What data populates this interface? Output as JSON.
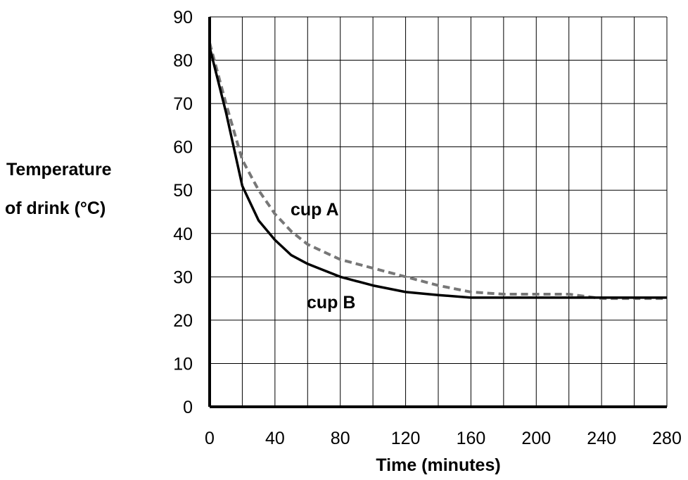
{
  "chart_data": {
    "type": "line",
    "xlabel": "Time (minutes)",
    "ylabel_lines": [
      "Temperature",
      "of drink (°C)"
    ],
    "xlim": [
      0,
      280
    ],
    "ylim": [
      0,
      90
    ],
    "x_ticks": [
      0,
      40,
      80,
      120,
      160,
      200,
      240,
      280
    ],
    "x_tick_labels": [
      "0",
      "40",
      "80",
      "120",
      "160",
      "200",
      "240",
      "280"
    ],
    "y_ticks": [
      0,
      10,
      20,
      30,
      40,
      50,
      60,
      70,
      80,
      90
    ],
    "y_tick_labels": [
      "0",
      "10",
      "20",
      "30",
      "40",
      "50",
      "60",
      "70",
      "80",
      "90"
    ],
    "grid_x_step": 20,
    "grid_y_step": 10,
    "grid": true,
    "series": [
      {
        "name": "cup A",
        "style": "dashed",
        "color": "#777777",
        "x": [
          0,
          10,
          20,
          30,
          40,
          50,
          60,
          80,
          100,
          120,
          140,
          160,
          180,
          200,
          220,
          240,
          260,
          280
        ],
        "y": [
          84,
          70,
          57,
          50,
          44.5,
          40.5,
          37.5,
          34,
          32,
          30,
          28,
          26.5,
          26,
          26,
          26,
          25,
          25,
          25
        ]
      },
      {
        "name": "cup B",
        "style": "solid",
        "color": "#000000",
        "x": [
          0,
          10,
          20,
          30,
          40,
          50,
          60,
          80,
          100,
          120,
          140,
          160,
          200,
          240,
          280
        ],
        "y": [
          83,
          68,
          51,
          43,
          38.5,
          35,
          33,
          30,
          28,
          26.5,
          25.8,
          25.2,
          25.2,
          25.2,
          25.2
        ]
      }
    ]
  }
}
